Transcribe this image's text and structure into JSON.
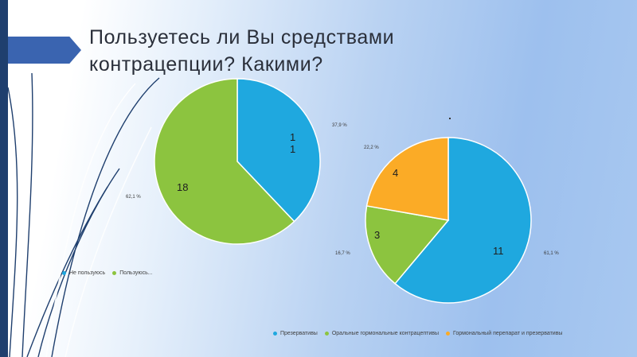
{
  "slide": {
    "title": "Пользуетесь ли Вы средствами\nконтрацепции? Какими?"
  },
  "theme": {
    "bar": "#1f3f6e",
    "accent": "#3a64b0"
  },
  "chart_data": [
    {
      "type": "pie",
      "categories": [
        "Не пользуюсь",
        "Пользуюсь..."
      ],
      "values": [
        11,
        18
      ],
      "value_labels": [
        "1\n1",
        "18"
      ],
      "percent_labels": [
        "37,9 %",
        "62,1 %"
      ],
      "colors": [
        "#1fa8df",
        "#8cc43f"
      ],
      "legend_position": "bottom-left"
    },
    {
      "type": "pie",
      "categories": [
        "Презервативы",
        "Оральные гормональные контрацептивы",
        "Гормональный перепарат и презервативы"
      ],
      "values": [
        11,
        3,
        4
      ],
      "value_labels": [
        "11",
        "3",
        "4"
      ],
      "percent_labels": [
        "61,1 %",
        "16,7 %",
        "22,2 %"
      ],
      "colors": [
        "#1fa8df",
        "#8cc43f",
        "#fbab26"
      ],
      "legend_position": "bottom"
    }
  ]
}
